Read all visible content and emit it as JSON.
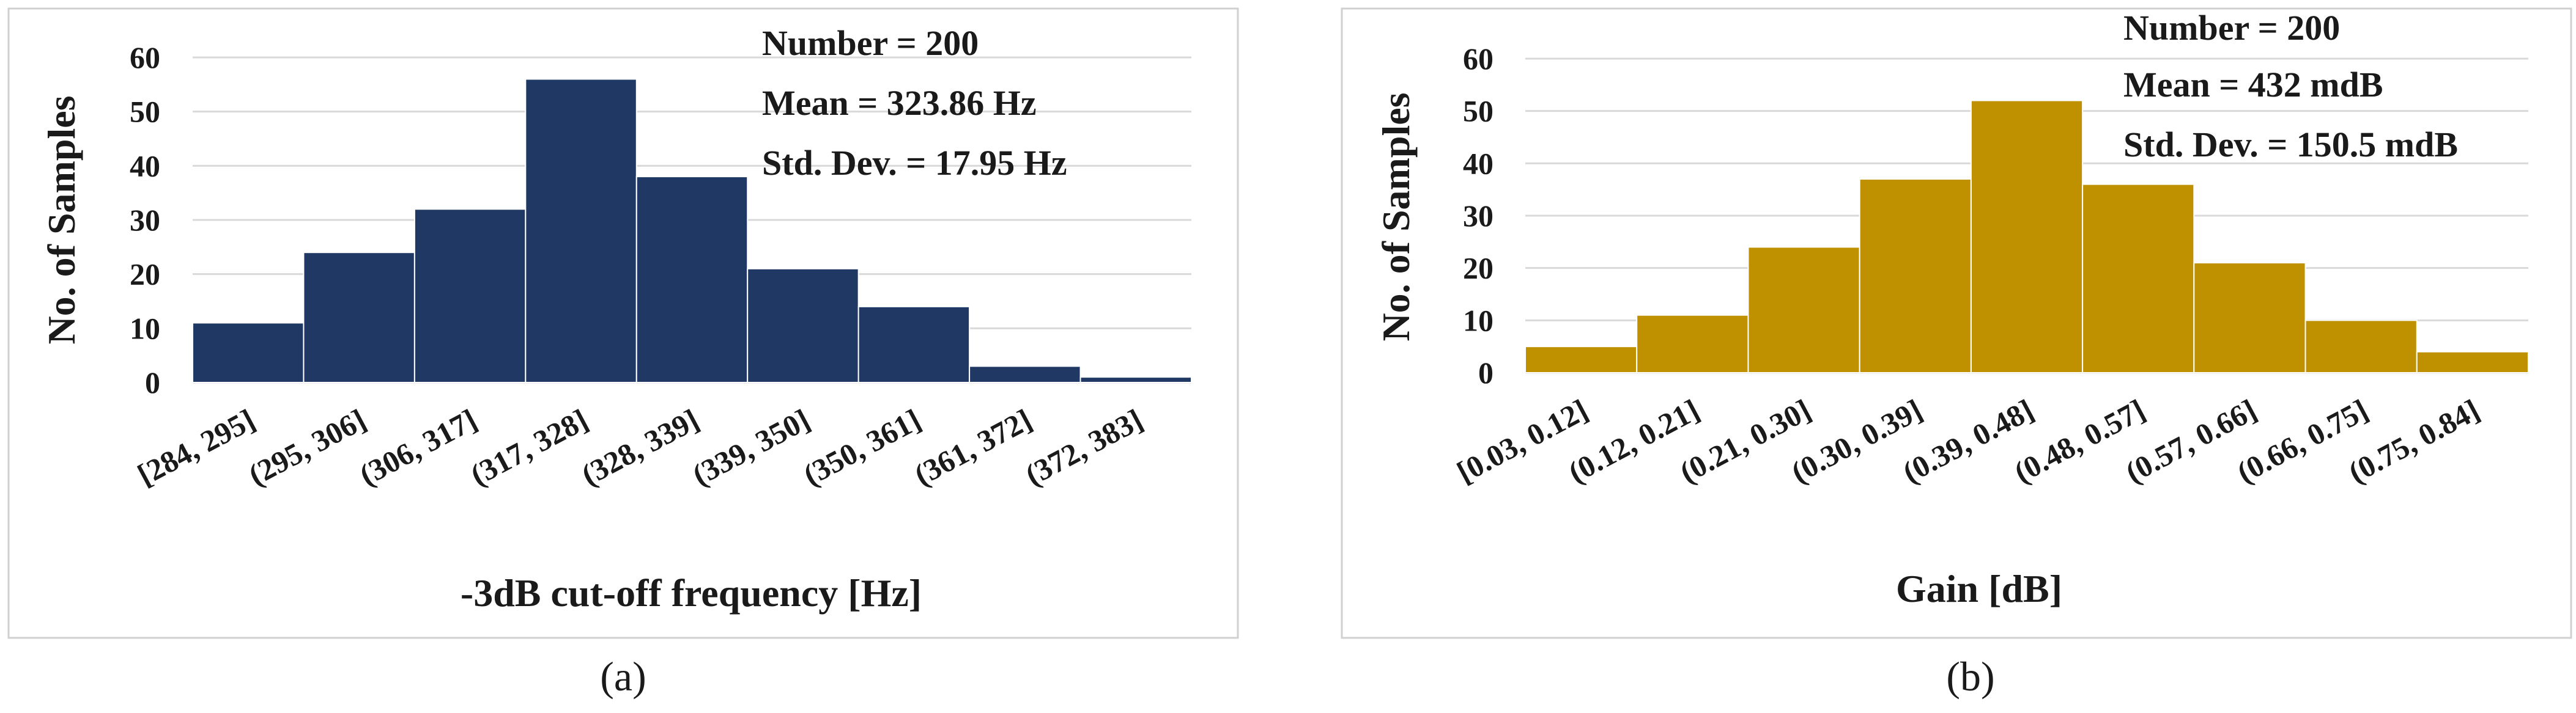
{
  "colors": {
    "panel_a_bar": "#203864",
    "panel_b_bar": "#BF9000",
    "grid": "#d9d9d9",
    "frame": "#d0d0d0",
    "text": "#1a1a1a"
  },
  "chart_data": [
    {
      "type": "bar",
      "label": "(a)",
      "xlabel": "-3dB cut-off frequency [Hz]",
      "ylabel": "No. of Samples",
      "ylim": [
        0,
        60
      ],
      "yticks": [
        "0",
        "10",
        "20",
        "30",
        "40",
        "50",
        "60"
      ],
      "grid": true,
      "categories": [
        "[284, 295]",
        "(295, 306]",
        "(306, 317]",
        "(317, 328]",
        "(328, 339]",
        "(339, 350]",
        "(350, 361]",
        "(361, 372]",
        "(372, 383]"
      ],
      "values": [
        11,
        24,
        32,
        56,
        38,
        21,
        14,
        3,
        1
      ],
      "stats": [
        "Number = 200",
        "Mean = 323.86 Hz",
        "Std. Dev. = 17.95 Hz"
      ]
    },
    {
      "type": "bar",
      "label": "(b)",
      "xlabel": "Gain [dB]",
      "ylabel": "No. of Samples",
      "ylim": [
        0,
        60
      ],
      "yticks": [
        "0",
        "10",
        "20",
        "30",
        "40",
        "50",
        "60"
      ],
      "grid": true,
      "categories": [
        "[0.03, 0.12]",
        "(0.12, 0.21]",
        "(0.21, 0.30]",
        "(0.30, 0.39]",
        "(0.39, 0.48]",
        "(0.48, 0.57]",
        "(0.57, 0.66]",
        "(0.66, 0.75]",
        "(0.75, 0.84]"
      ],
      "values": [
        5,
        11,
        24,
        37,
        52,
        36,
        21,
        10,
        4
      ],
      "stats": [
        "Number = 200",
        "Mean = 432 mdB",
        "Std. Dev. = 150.5 mdB"
      ]
    }
  ]
}
